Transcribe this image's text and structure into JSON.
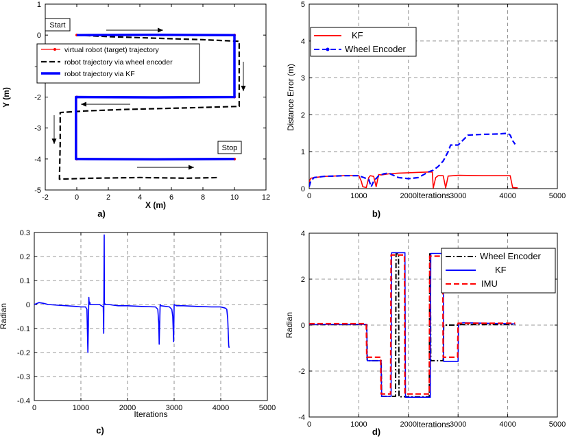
{
  "chart_data": [
    {
      "panel": "a)",
      "type": "line",
      "xlabel": "X (m)",
      "ylabel": "Y (m)",
      "xlim": [
        -2,
        12
      ],
      "ylim": [
        -5,
        1
      ],
      "xticks": [
        -2,
        0,
        2,
        4,
        6,
        8,
        10,
        12
      ],
      "yticks": [
        -5,
        -4,
        -3,
        -2,
        -1,
        0,
        1
      ],
      "grid": false,
      "legend_position": "top-right",
      "annotations": [
        "Start",
        "Stop"
      ],
      "series": [
        {
          "name": "virtual robot (target) trajectory",
          "color": "#ff0000",
          "style": "solid-dots",
          "x": [
            0,
            10,
            10,
            0,
            0,
            10
          ],
          "y": [
            0,
            0,
            -2,
            -2,
            -4,
            -4
          ]
        },
        {
          "name": "robot trajectory via wheel encoder",
          "color": "#000000",
          "style": "dashed",
          "x": [
            0,
            2,
            5,
            8,
            10.3,
            10.3,
            7,
            3,
            0.5,
            -1.05,
            -1.05,
            -1.1,
            1,
            4,
            7,
            9
          ],
          "y": [
            0,
            -0.05,
            -0.1,
            -0.15,
            -0.2,
            -2.3,
            -2.35,
            -2.4,
            -2.45,
            -2.5,
            -3.5,
            -4.65,
            -4.62,
            -4.6,
            -4.62,
            -4.6
          ]
        },
        {
          "name": "robot trajectory via    KF",
          "color": "#0000ff",
          "style": "solid-thick",
          "x": [
            0,
            5,
            10,
            10,
            5,
            -0.05,
            -0.05,
            5,
            10
          ],
          "y": [
            0,
            0.01,
            0,
            -2,
            -2.01,
            -2,
            -4,
            -4.01,
            -4
          ]
        }
      ]
    },
    {
      "panel": "b)",
      "type": "line",
      "xlabel": "Iterations",
      "ylabel": "Distance Error (m)",
      "xlim": [
        0,
        5000
      ],
      "ylim": [
        0,
        5
      ],
      "xticks": [
        0,
        1000,
        2000,
        3000,
        4000,
        5000
      ],
      "yticks": [
        0,
        1,
        2,
        3,
        4,
        5
      ],
      "grid": true,
      "legend_position": "top-left",
      "series": [
        {
          "name": "KF",
          "color": "#ff0000",
          "style": "solid",
          "x": [
            0,
            30,
            100,
            300,
            700,
            1000,
            1050,
            1080,
            1150,
            1200,
            1230,
            1300,
            1350,
            1400,
            1450,
            1500,
            1600,
            1800,
            2000,
            2200,
            2400,
            2480,
            2500,
            2550,
            2600,
            2700,
            2750,
            2800,
            2900,
            3000,
            3500,
            4000,
            4050,
            4100,
            4200
          ],
          "y": [
            0.18,
            0.28,
            0.3,
            0.33,
            0.35,
            0.35,
            0.2,
            0.05,
            0.03,
            0.3,
            0.35,
            0.33,
            0.05,
            0.38,
            0.37,
            0.38,
            0.4,
            0.42,
            0.43,
            0.44,
            0.45,
            0.45,
            0.02,
            0.3,
            0.35,
            0.35,
            0.02,
            0.34,
            0.35,
            0.36,
            0.35,
            0.35,
            0.35,
            0.03,
            0.02
          ]
        },
        {
          "name": "Wheel Encoder",
          "color": "#0000ff",
          "style": "dashed",
          "x": [
            0,
            30,
            100,
            300,
            700,
            1000,
            1100,
            1200,
            1250,
            1300,
            1400,
            1500,
            1600,
            1800,
            2000,
            2200,
            2400,
            2500,
            2600,
            2700,
            2800,
            2850,
            3000,
            3200,
            3500,
            3800,
            4000,
            4050,
            4100,
            4150
          ],
          "y": [
            0.05,
            0.2,
            0.3,
            0.33,
            0.35,
            0.35,
            0.3,
            0.25,
            0.05,
            0.2,
            0.35,
            0.4,
            0.42,
            0.3,
            0.27,
            0.3,
            0.45,
            0.5,
            0.6,
            0.75,
            1.0,
            1.18,
            1.18,
            1.45,
            1.47,
            1.48,
            1.5,
            1.45,
            1.3,
            1.2
          ]
        }
      ]
    },
    {
      "panel": "c)",
      "type": "line",
      "xlabel": "Iterations",
      "ylabel": "Radian",
      "xlim": [
        0,
        5000
      ],
      "ylim": [
        -0.4,
        0.3
      ],
      "xticks": [
        0,
        1000,
        2000,
        3000,
        4000,
        5000
      ],
      "yticks": [
        -0.4,
        -0.3,
        -0.2,
        -0.1,
        0,
        0.1,
        0.2,
        0.3
      ],
      "grid": true,
      "series": [
        {
          "name": "",
          "color": "#0000ff",
          "style": "solid",
          "x": [
            0,
            100,
            200,
            300,
            500,
            700,
            900,
            1000,
            1100,
            1130,
            1150,
            1170,
            1180,
            1190,
            1200,
            1300,
            1400,
            1480,
            1490,
            1500,
            1505,
            1510,
            1520,
            1600,
            1700,
            1800,
            1900,
            2000,
            2300,
            2600,
            2650,
            2670,
            2680,
            2700,
            2720,
            2900,
            2950,
            2970,
            2990,
            3000,
            3050,
            3200,
            3500,
            3800,
            4000,
            4100,
            4130,
            4150,
            4170,
            4180
          ],
          "y": [
            0,
            0.008,
            0.005,
            0.0,
            -0.003,
            -0.005,
            -0.008,
            -0.01,
            -0.01,
            -0.02,
            -0.2,
            0.03,
            0.0,
            0.01,
            0.0,
            0.0,
            0.0,
            -0.01,
            -0.12,
            0.29,
            0.0,
            0.005,
            0.0,
            0.0,
            -0.003,
            -0.005,
            -0.005,
            -0.005,
            -0.008,
            -0.01,
            -0.02,
            -0.08,
            -0.165,
            0.0,
            -0.005,
            -0.01,
            -0.02,
            -0.05,
            -0.155,
            0.0,
            -0.005,
            -0.005,
            -0.008,
            -0.01,
            -0.01,
            -0.015,
            -0.02,
            -0.06,
            -0.17,
            -0.18
          ]
        }
      ]
    },
    {
      "panel": "d)",
      "type": "line",
      "xlabel": "Iterations",
      "ylabel": "Radian",
      "xlim": [
        0,
        5000
      ],
      "ylim": [
        -4,
        4
      ],
      "xticks": [
        0,
        1000,
        2000,
        3000,
        4000,
        5000
      ],
      "yticks": [
        -4,
        -2,
        0,
        2,
        4
      ],
      "grid": true,
      "legend_position": "top-right",
      "series": [
        {
          "name": "Wheel Encoder",
          "color": "#000000",
          "style": "dashdot",
          "x": [
            0,
            1160,
            1170,
            1450,
            1460,
            1740,
            1750,
            1800,
            1810,
            2420,
            2430,
            2440,
            2450,
            2700,
            2710,
            3000,
            3010,
            4150
          ],
          "y": [
            0.02,
            0.02,
            -1.55,
            -1.55,
            -3.1,
            -3.1,
            3.1,
            3.1,
            -3.12,
            -3.12,
            3.1,
            3.1,
            -1.55,
            -1.55,
            0.0,
            0.0,
            0.02,
            0.02
          ]
        },
        {
          "name": "KF",
          "color": "#0000ff",
          "style": "solid",
          "x": [
            0,
            1160,
            1170,
            1450,
            1460,
            1650,
            1660,
            1930,
            1940,
            2440,
            2450,
            2700,
            2710,
            3000,
            3010,
            3100,
            4150
          ],
          "y": [
            0.03,
            0.03,
            -1.55,
            -1.55,
            -3.1,
            -3.1,
            3.15,
            3.15,
            -3.14,
            -3.14,
            3.12,
            3.12,
            -1.58,
            -1.58,
            0.05,
            0.1,
            0.05
          ]
        },
        {
          "name": "IMU",
          "color": "#ff0000",
          "style": "dashed",
          "x": [
            0,
            1150,
            1160,
            1440,
            1450,
            1640,
            1650,
            1920,
            1930,
            2420,
            2430,
            2690,
            2700,
            2990,
            3000,
            4150
          ],
          "y": [
            0.06,
            0.06,
            -1.4,
            -1.4,
            -3.0,
            -3.0,
            3.05,
            3.05,
            -3.0,
            -3.0,
            3.0,
            3.0,
            -1.4,
            -1.4,
            0.08,
            0.08
          ]
        }
      ]
    }
  ]
}
